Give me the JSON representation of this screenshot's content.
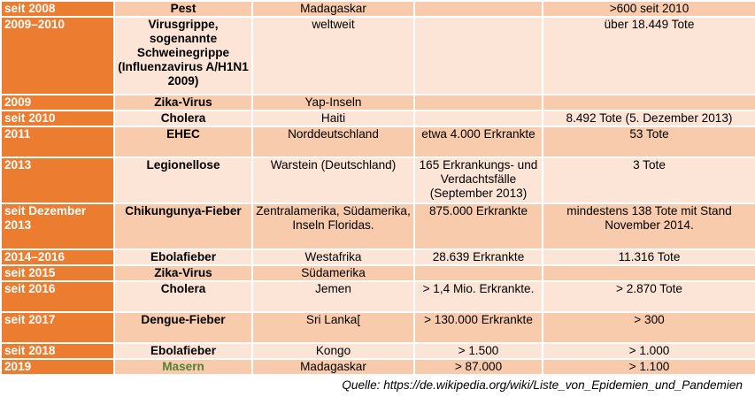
{
  "table": {
    "rows": [
      {
        "year": "seit 2008",
        "disease": "Pest",
        "region": "Madagaskar",
        "cases": "",
        "deaths": ">600 seit 2010"
      },
      {
        "year": "2009–2010",
        "disease": "Virusgrippe, sogenannte Schweinegrippe (Influenzavirus A/H1N1 2009)",
        "region": "weltweit",
        "cases": "",
        "deaths": "über 18.449 Tote"
      },
      {
        "year": "2009",
        "disease": "Zika-Virus",
        "region": "Yap-Inseln",
        "cases": "",
        "deaths": ""
      },
      {
        "year": "seit 2010",
        "disease": "Cholera",
        "region": "Haiti",
        "cases": "",
        "deaths": "8.492 Tote (5. Dezember 2013)"
      },
      {
        "year": "2011",
        "disease": "EHEC",
        "region": "Norddeutschland",
        "cases": "etwa 4.000 Erkrankte",
        "deaths": "53 Tote"
      },
      {
        "year": "2013",
        "disease": "Legionellose",
        "region": "Warstein (Deutschland)",
        "cases": "165 Erkrankungs- und Verdachtsfälle (September 2013)",
        "deaths": "3 Tote"
      },
      {
        "year": "seit Dezember 2013",
        "disease": "Chikungunya-Fieber",
        "region": "Zentralamerika, Südamerika, Inseln Floridas.",
        "cases": "875.000 Erkrankte",
        "deaths": "mindestens 138 Tote mit Stand November 2014."
      },
      {
        "year": "2014–2016",
        "disease": "Ebolafieber",
        "region": "Westafrika",
        "cases": "28.639 Erkrankte",
        "deaths": "11.316 Tote"
      },
      {
        "year": "seit 2015",
        "disease": "Zika-Virus",
        "region": "Südamerika",
        "cases": "",
        "deaths": ""
      },
      {
        "year": "seit 2016",
        "disease": "Cholera",
        "region": "Jemen",
        "cases": "> 1,4 Mio. Erkrankte.",
        "deaths": "> 2.870 Tote"
      },
      {
        "year": "seit 2017",
        "disease": "Dengue-Fieber",
        "region": "Sri Lanka[",
        "cases": "> 130.000 Erkrankte",
        "deaths": "> 300"
      },
      {
        "year": "seit 2018",
        "disease": "Ebolafieber",
        "region": "Kongo",
        "cases": "> 1.500",
        "deaths": "> 1.000"
      },
      {
        "year": "2019",
        "disease": "Masern",
        "region": "Madagaskar",
        "cases": "> 87.000",
        "deaths": "> 1.100"
      }
    ]
  },
  "source": "Quelle: https://de.wikipedia.org/wiki/Liste_von_Epidemien_und_Pandemien",
  "colors": {
    "year_column": "#ec7c30",
    "row_dark": "#f8cbad",
    "row_light": "#fce4d6",
    "highlight_text": "#548235"
  }
}
